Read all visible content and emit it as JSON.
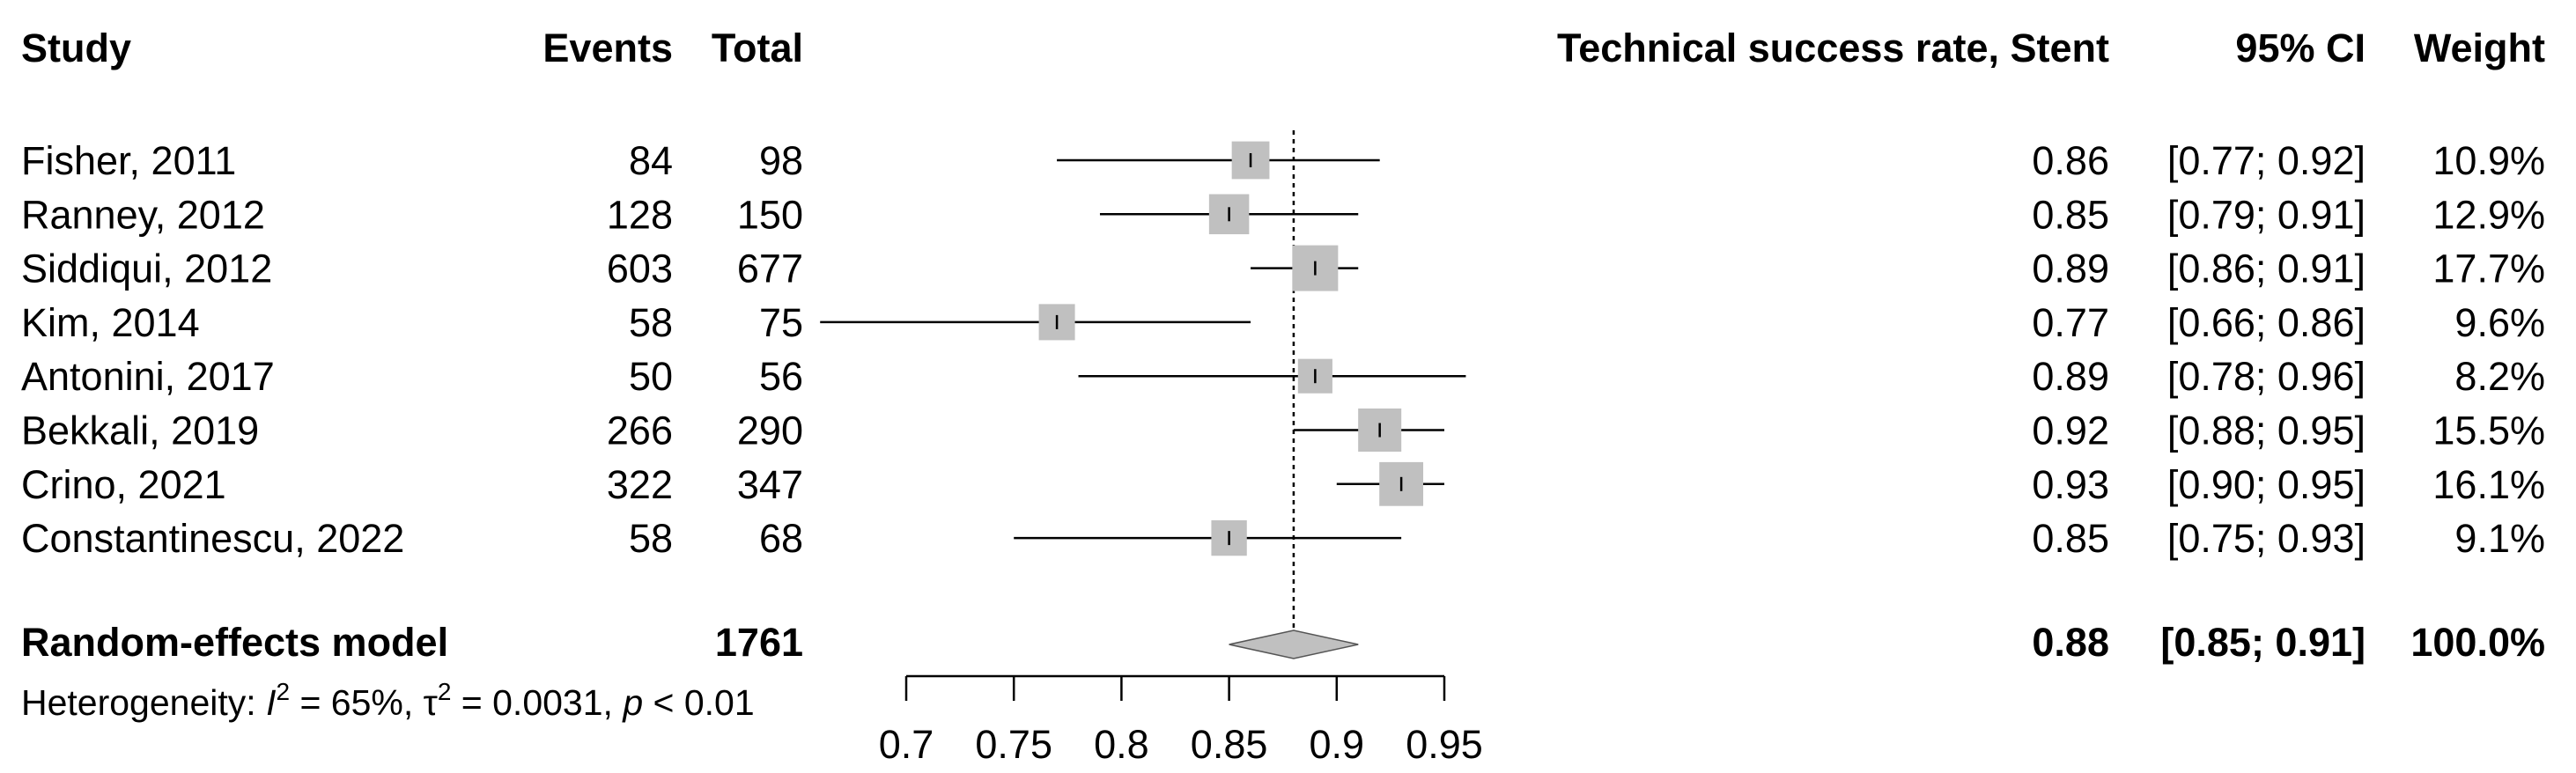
{
  "headers": {
    "study": "Study",
    "events": "Events",
    "total": "Total",
    "estimate": "Technical success rate, Stent",
    "ci": "95% CI",
    "weight": "Weight"
  },
  "model": {
    "label": "Random-effects model",
    "total": "1761",
    "estimate": "0.88",
    "ci": "[0.85; 0.91]",
    "weight": "100.0%"
  },
  "heterogeneity": {
    "prefix": "Heterogeneity: ",
    "i2_symbol": "I",
    "i2_sup": "2",
    "i2_value": " = 65%, ",
    "tau_symbol": "τ",
    "tau_sup": "2",
    "tau_value": " = 0.0031, ",
    "p_symbol": "p",
    "p_value": " < 0.01"
  },
  "chart_data": {
    "type": "forest",
    "x_ticks": [
      "0.7",
      "0.75",
      "0.8",
      "0.85",
      "0.9",
      "0.95"
    ],
    "xlim": [
      0.7,
      0.95
    ],
    "reference_line": 0.88,
    "studies": [
      {
        "study": "Fisher, 2011",
        "events": "84",
        "total": "98",
        "est": 0.86,
        "lo": 0.77,
        "hi": 0.92,
        "weight_pct": 10.9,
        "est_text": "0.86",
        "ci_text": "[0.77; 0.92]",
        "weight_text": "10.9%"
      },
      {
        "study": "Ranney, 2012",
        "events": "128",
        "total": "150",
        "est": 0.85,
        "lo": 0.79,
        "hi": 0.91,
        "weight_pct": 12.9,
        "est_text": "0.85",
        "ci_text": "[0.79; 0.91]",
        "weight_text": "12.9%"
      },
      {
        "study": "Siddiqui, 2012",
        "events": "603",
        "total": "677",
        "est": 0.89,
        "lo": 0.86,
        "hi": 0.91,
        "weight_pct": 17.7,
        "est_text": "0.89",
        "ci_text": "[0.86; 0.91]",
        "weight_text": "17.7%"
      },
      {
        "study": "Kim, 2014",
        "events": "58",
        "total": "75",
        "est": 0.77,
        "lo": 0.66,
        "hi": 0.86,
        "weight_pct": 9.6,
        "est_text": "0.77",
        "ci_text": "[0.66; 0.86]",
        "weight_text": "9.6%"
      },
      {
        "study": "Antonini, 2017",
        "events": "50",
        "total": "56",
        "est": 0.89,
        "lo": 0.78,
        "hi": 0.96,
        "weight_pct": 8.2,
        "est_text": "0.89",
        "ci_text": "[0.78; 0.96]",
        "weight_text": "8.2%"
      },
      {
        "study": "Bekkali, 2019",
        "events": "266",
        "total": "290",
        "est": 0.92,
        "lo": 0.88,
        "hi": 0.95,
        "weight_pct": 15.5,
        "est_text": "0.92",
        "ci_text": "[0.88; 0.95]",
        "weight_text": "15.5%"
      },
      {
        "study": "Crino, 2021",
        "events": "322",
        "total": "347",
        "est": 0.93,
        "lo": 0.9,
        "hi": 0.95,
        "weight_pct": 16.1,
        "est_text": "0.93",
        "ci_text": "[0.90; 0.95]",
        "weight_text": "16.1%"
      },
      {
        "study": "Constantinescu, 2022",
        "events": "58",
        "total": "68",
        "est": 0.85,
        "lo": 0.75,
        "hi": 0.93,
        "weight_pct": 9.1,
        "est_text": "0.85",
        "ci_text": "[0.75; 0.93]",
        "weight_text": "9.1%"
      }
    ],
    "pooled": {
      "est": 0.88,
      "lo": 0.85,
      "hi": 0.91
    },
    "colors": {
      "box": "#c0c0c0",
      "diamond": "#c0c0c0",
      "line": "#000000"
    }
  }
}
